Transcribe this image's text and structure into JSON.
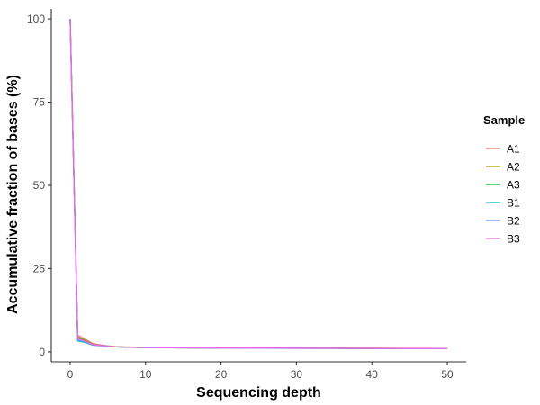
{
  "chart_data": {
    "type": "line",
    "xlabel": "Sequencing depth",
    "ylabel": "Accumulative fraction of bases (%)",
    "xlim": [
      -2.5,
      52.5
    ],
    "ylim": [
      -3,
      103
    ],
    "x_ticks": [
      0,
      10,
      20,
      30,
      40,
      50
    ],
    "y_ticks": [
      0,
      25,
      50,
      75,
      100
    ],
    "x_tick_labels": [
      "0",
      "10",
      "20",
      "30",
      "40",
      "50"
    ],
    "y_tick_labels": [
      "0",
      "25",
      "50",
      "75",
      "100"
    ],
    "grid": false,
    "legend": {
      "title": "Sample",
      "position": "right"
    },
    "x": [
      0,
      1,
      2,
      3,
      4,
      5,
      6,
      7,
      8,
      9,
      10,
      12,
      15,
      20,
      25,
      30,
      35,
      40,
      45,
      50
    ],
    "series": [
      {
        "name": "A1",
        "color": "#F8766D",
        "values": [
          100,
          5.0,
          3.8,
          2.5,
          2.1,
          1.8,
          1.6,
          1.5,
          1.45,
          1.4,
          1.35,
          1.3,
          1.25,
          1.2,
          1.15,
          1.1,
          1.1,
          1.05,
          1.05,
          1.0
        ]
      },
      {
        "name": "A2",
        "color": "#B79F00",
        "values": [
          100,
          4.5,
          3.5,
          2.3,
          2.0,
          1.75,
          1.55,
          1.45,
          1.4,
          1.35,
          1.3,
          1.28,
          1.22,
          1.18,
          1.13,
          1.1,
          1.08,
          1.05,
          1.03,
          1.0
        ]
      },
      {
        "name": "A3",
        "color": "#00BA38",
        "values": [
          100,
          4.2,
          3.3,
          2.2,
          1.95,
          1.7,
          1.5,
          1.42,
          1.38,
          1.33,
          1.3,
          1.26,
          1.2,
          1.16,
          1.12,
          1.08,
          1.06,
          1.04,
          1.02,
          1.0
        ]
      },
      {
        "name": "B1",
        "color": "#00BFC4",
        "values": [
          100,
          3.3,
          2.8,
          2.0,
          1.85,
          1.65,
          1.5,
          1.42,
          1.36,
          1.32,
          1.28,
          1.24,
          1.2,
          1.15,
          1.1,
          1.07,
          1.05,
          1.03,
          1.01,
          1.0
        ]
      },
      {
        "name": "B2",
        "color": "#619CFF",
        "values": [
          100,
          3.6,
          3.0,
          2.1,
          1.9,
          1.68,
          1.52,
          1.43,
          1.37,
          1.33,
          1.29,
          1.25,
          1.2,
          1.15,
          1.11,
          1.07,
          1.05,
          1.03,
          1.01,
          1.0
        ]
      },
      {
        "name": "B3",
        "color": "#F564E3",
        "values": [
          100,
          4.0,
          3.2,
          2.2,
          1.95,
          1.7,
          1.53,
          1.44,
          1.38,
          1.34,
          1.3,
          1.26,
          1.21,
          1.16,
          1.12,
          1.08,
          1.06,
          1.04,
          1.02,
          1.0
        ]
      }
    ]
  }
}
